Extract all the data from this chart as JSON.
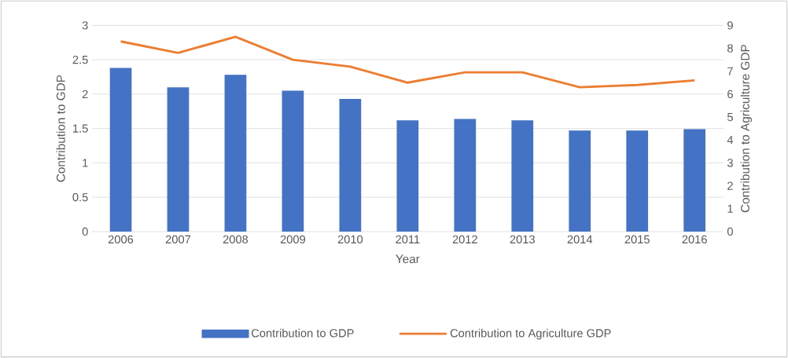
{
  "chart_data": {
    "type": "bar",
    "xlabel": "Year",
    "ylabel": "Contribution to GDP",
    "y2label": "Contribution to Agriculture GDP",
    "categories": [
      "2006",
      "2007",
      "2008",
      "2009",
      "2010",
      "2011",
      "2012",
      "2013",
      "2014",
      "2015",
      "2016"
    ],
    "series": [
      {
        "name": "Contribution to GDP",
        "color": "#4472c4",
        "values": [
          2.38,
          2.1,
          2.28,
          2.05,
          1.93,
          1.62,
          1.64,
          1.62,
          1.47,
          1.47,
          1.49
        ]
      },
      {
        "name": "Contribution to Agriculture GDP",
        "type": "line",
        "axis": "y2",
        "color": "#ed7d31",
        "values": [
          8.3,
          7.8,
          8.5,
          7.5,
          7.2,
          6.5,
          6.95,
          6.95,
          6.3,
          6.4,
          6.6
        ]
      }
    ],
    "ylim": [
      0,
      3
    ],
    "yticks": [
      0,
      0.5,
      1,
      1.5,
      2,
      2.5,
      3
    ],
    "y2lim": [
      0,
      9
    ],
    "y2ticks": [
      0,
      1,
      2,
      3,
      4,
      5,
      6,
      7,
      8,
      9
    ],
    "grid": "y",
    "legend": "bottom"
  }
}
